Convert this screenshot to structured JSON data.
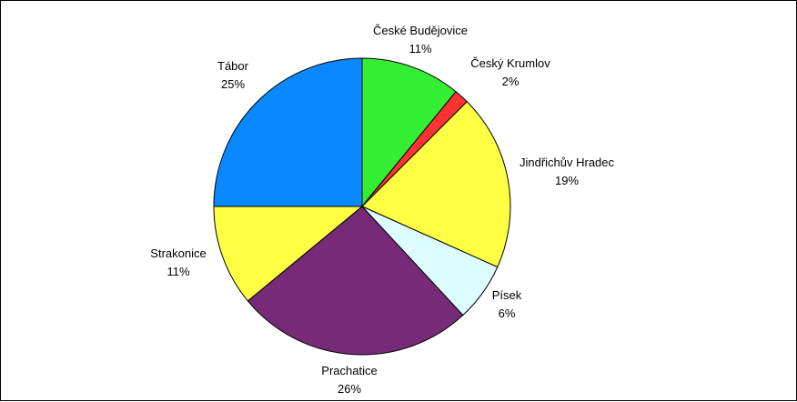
{
  "chart_data": {
    "type": "pie",
    "start_angle_deg": 0,
    "direction": "clockwise",
    "slices": [
      {
        "label": "České Budějovice",
        "percent_label": "11%",
        "value": 10.9,
        "color": "#33ee33"
      },
      {
        "label": "Český Krumlov",
        "percent_label": "2%",
        "value": 1.6,
        "color": "#ff3333"
      },
      {
        "label": "Jindřichův Hradec",
        "percent_label": "19%",
        "value": 19.2,
        "color": "#ffff44"
      },
      {
        "label": "Písek",
        "percent_label": "6%",
        "value": 6.4,
        "color": "#ddfcff"
      },
      {
        "label": "Prachatice",
        "percent_label": "26%",
        "value": 25.9,
        "color": "#772a77"
      },
      {
        "label": "Strakonice",
        "percent_label": "11%",
        "value": 11.0,
        "color": "#ffff44"
      },
      {
        "label": "Tábor",
        "percent_label": "25%",
        "value": 25.0,
        "color": "#0a88ff"
      }
    ]
  }
}
